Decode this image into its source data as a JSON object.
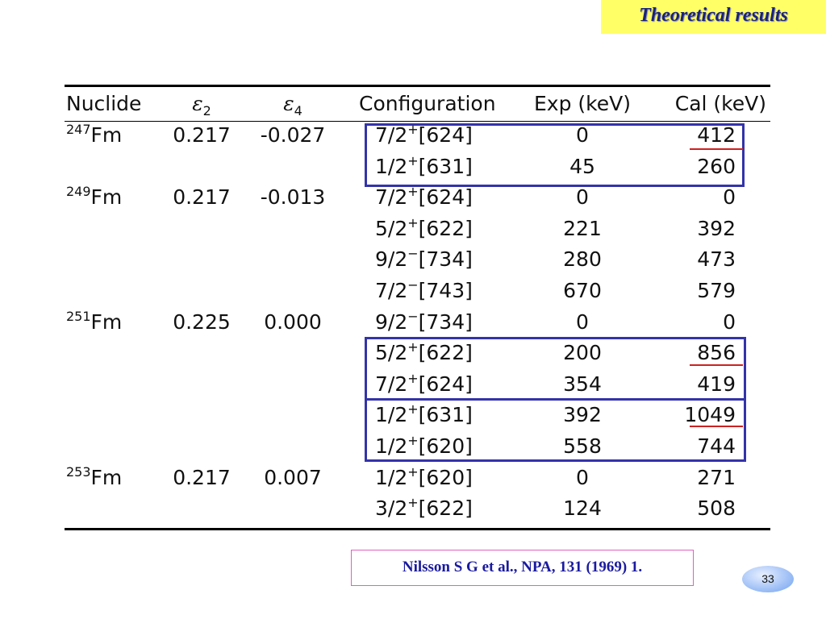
{
  "header": {
    "title": "Theoretical results"
  },
  "table": {
    "columns": {
      "nuclide": "Nuclide",
      "eps2": {
        "symbol": "ε",
        "sub": "2"
      },
      "eps4": {
        "symbol": "ε",
        "sub": "4"
      },
      "configuration": "Configuration",
      "exp": "Exp (keV)",
      "cal": "Cal (keV)"
    },
    "groups": [
      {
        "mass": "247",
        "element": "Fm",
        "eps2": "0.217",
        "eps4": "-0.027",
        "states": [
          {
            "spin": "7/2",
            "parity": "+",
            "orbit": "[624]",
            "exp": 0,
            "cal": 412
          },
          {
            "spin": "1/2",
            "parity": "+",
            "orbit": "[631]",
            "exp": 45,
            "cal": 260
          }
        ]
      },
      {
        "mass": "249",
        "element": "Fm",
        "eps2": "0.217",
        "eps4": "-0.013",
        "states": [
          {
            "spin": "7/2",
            "parity": "+",
            "orbit": "[624]",
            "exp": 0,
            "cal": 0
          },
          {
            "spin": "5/2",
            "parity": "+",
            "orbit": "[622]",
            "exp": 221,
            "cal": 392
          },
          {
            "spin": "9/2",
            "parity": "−",
            "orbit": "[734]",
            "exp": 280,
            "cal": 473
          },
          {
            "spin": "7/2",
            "parity": "−",
            "orbit": "[743]",
            "exp": 670,
            "cal": 579
          }
        ]
      },
      {
        "mass": "251",
        "element": "Fm",
        "eps2": "0.225",
        "eps4": "0.000",
        "states": [
          {
            "spin": "9/2",
            "parity": "−",
            "orbit": "[734]",
            "exp": 0,
            "cal": 0
          },
          {
            "spin": "5/2",
            "parity": "+",
            "orbit": "[622]",
            "exp": 200,
            "cal": 856
          },
          {
            "spin": "7/2",
            "parity": "+",
            "orbit": "[624]",
            "exp": 354,
            "cal": 419
          },
          {
            "spin": "1/2",
            "parity": "+",
            "orbit": "[631]",
            "exp": 392,
            "cal": 1049
          },
          {
            "spin": "1/2",
            "parity": "+",
            "orbit": "[620]",
            "exp": 558,
            "cal": 744
          }
        ]
      },
      {
        "mass": "253",
        "element": "Fm",
        "eps2": "0.217",
        "eps4": "0.007",
        "states": [
          {
            "spin": "1/2",
            "parity": "+",
            "orbit": "[620]",
            "exp": 0,
            "cal": 271
          },
          {
            "spin": "3/2",
            "parity": "+",
            "orbit": "[622]",
            "exp": 124,
            "cal": 508
          }
        ]
      }
    ]
  },
  "citation": "Nilsson S G et al., NPA, 131 (1969) 1.",
  "page_number": "33"
}
